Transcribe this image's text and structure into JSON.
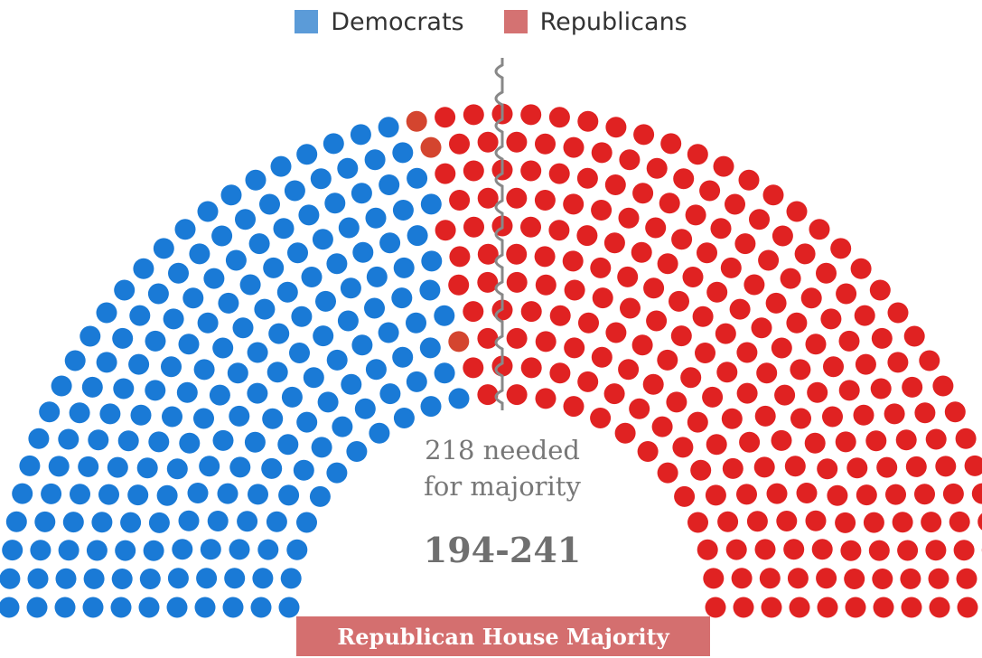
{
  "legend": {
    "items": [
      {
        "label": "Democrats",
        "color": "#5b9bd8"
      },
      {
        "label": "Republicans",
        "color": "#d47272"
      }
    ]
  },
  "center": {
    "needed_line1": "218 needed",
    "needed_line2": "for majority",
    "score": "194-241"
  },
  "banner": {
    "label": "Republican House Majority"
  },
  "chart_data": {
    "type": "parliament",
    "total_seats": 435,
    "majority_needed": 218,
    "series": [
      {
        "name": "Democrats",
        "values": [
          194
        ],
        "color": "#1a7ad6"
      },
      {
        "name": "Republicans",
        "values": [
          241
        ],
        "color": "#e02222"
      }
    ],
    "highlight_seats": 3,
    "highlight_color": "#d4452f"
  }
}
